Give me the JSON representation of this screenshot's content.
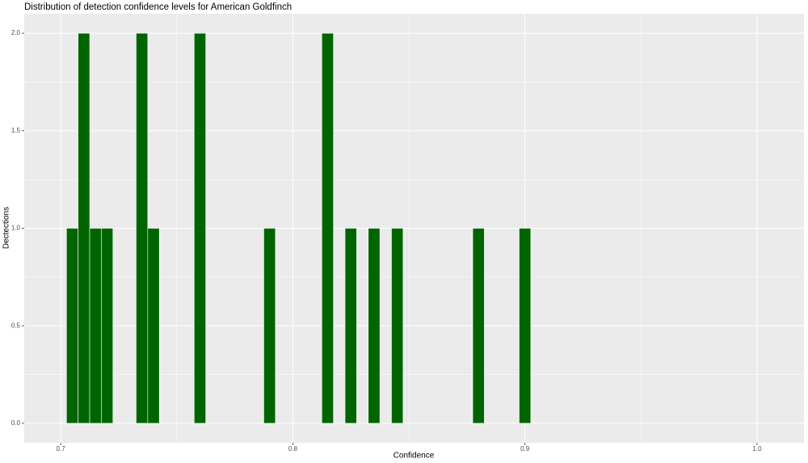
{
  "chart_data": {
    "type": "histogram",
    "title": "Distribution of detection confidence levels for American Goldfinch",
    "xlabel": "Confidence",
    "ylabel": "Dectections",
    "bins": [
      0.7025,
      0.7075,
      0.7125,
      0.7175,
      0.7225,
      0.7275,
      0.7325,
      0.7375,
      0.7425,
      0.7475,
      0.7525,
      0.7575,
      0.7625,
      0.7675,
      0.7725,
      0.7775,
      0.7825,
      0.7875,
      0.7925,
      0.7975,
      0.8025,
      0.8075,
      0.8125,
      0.8175,
      0.8225,
      0.8275,
      0.8325,
      0.8375,
      0.8425,
      0.8475,
      0.8525,
      0.8575,
      0.8625,
      0.8675,
      0.8725,
      0.8775,
      0.8825,
      0.8875,
      0.8925,
      0.8975,
      0.9025
    ],
    "values": [
      1,
      2,
      1,
      1,
      0,
      0,
      2,
      1,
      0,
      0,
      0,
      2,
      0,
      0,
      0,
      0,
      0,
      1,
      0,
      0,
      0,
      0,
      2,
      0,
      1,
      0,
      1,
      0,
      1,
      0,
      0,
      0,
      0,
      0,
      0,
      1,
      0,
      0,
      0,
      1
    ],
    "color": "#006400",
    "xlim": [
      0.6843,
      1.0202
    ],
    "xticks": [
      0.7,
      0.8,
      0.9,
      {
        "value": 1.0,
        "label": "1.0"
      }
    ],
    "ylim": [
      -0.1,
      2.1
    ],
    "yticks": [
      {
        "value": 0,
        "label": "0.0"
      },
      0.5,
      {
        "value": 1,
        "label": "1.0"
      },
      1.5,
      {
        "value": 2,
        "label": "2.0"
      }
    ],
    "grid": true
  }
}
